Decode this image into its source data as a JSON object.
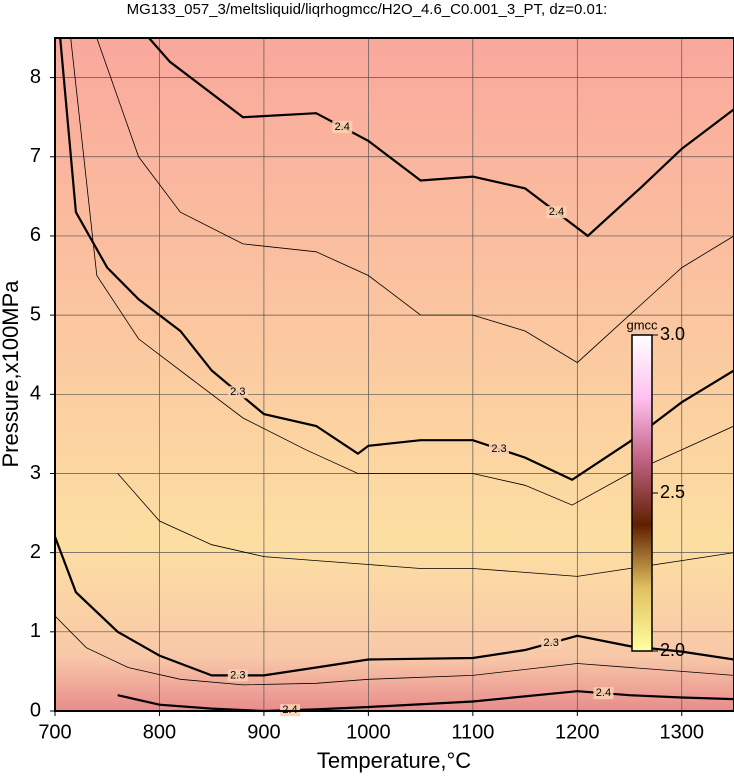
{
  "chart_data": {
    "type": "contour",
    "title": "MG133_057_3/meltsliquid/liqrhogmcc/H2O_4.6_C0.001_3_PT, dz=0.01:",
    "x_label": "Temperature,°C",
    "y_label": "Pressure,x100MPa",
    "xlim": [
      700,
      1350
    ],
    "ylim": [
      0,
      8.5
    ],
    "xticks": [
      700,
      800,
      900,
      1000,
      1100,
      1200,
      1300
    ],
    "yticks": [
      0,
      1,
      2,
      3,
      4,
      5,
      6,
      7,
      8
    ],
    "grid": true,
    "contours": [
      {
        "level": 2.4,
        "major": true,
        "x": [
          790,
          810,
          880,
          950,
          1000,
          1050,
          1100,
          1150,
          1210,
          1260,
          1300,
          1350
        ],
        "y": [
          8.5,
          8.2,
          7.5,
          7.55,
          7.2,
          6.7,
          6.75,
          6.6,
          6.0,
          6.6,
          7.1,
          7.6
        ]
      },
      {
        "level": 2.3,
        "major": true,
        "x": [
          705,
          720,
          750,
          780,
          820,
          850,
          900,
          950,
          990,
          1000,
          1050,
          1100,
          1150,
          1195,
          1250,
          1300,
          1350
        ],
        "y": [
          8.5,
          6.3,
          5.6,
          5.2,
          4.8,
          4.3,
          3.75,
          3.6,
          3.25,
          3.35,
          3.42,
          3.42,
          3.2,
          2.92,
          3.4,
          3.9,
          4.3
        ]
      },
      {
        "level": 2.3,
        "major": true,
        "x": [
          700,
          720,
          760,
          800,
          850,
          900,
          950,
          1000,
          1100,
          1150,
          1200,
          1250,
          1300,
          1350
        ],
        "y": [
          2.2,
          1.5,
          1.0,
          0.7,
          0.45,
          0.45,
          0.55,
          0.65,
          0.67,
          0.77,
          0.95,
          0.82,
          0.75,
          0.65
        ]
      },
      {
        "level": 2.4,
        "major": true,
        "x": [
          760,
          800,
          850,
          900,
          950,
          1000,
          1100,
          1200,
          1250,
          1300,
          1350
        ],
        "y": [
          0.2,
          0.08,
          0.03,
          0.0,
          0.02,
          0.05,
          0.12,
          0.25,
          0.2,
          0.17,
          0.15
        ]
      },
      {
        "level": 2.35,
        "major": false,
        "x": [
          740,
          780,
          820,
          880,
          950,
          1000,
          1050,
          1100,
          1150,
          1200,
          1250,
          1300,
          1350
        ],
        "y": [
          8.5,
          7.0,
          6.3,
          5.9,
          5.8,
          5.5,
          5.0,
          5.0,
          4.8,
          4.4,
          5.0,
          5.6,
          6.0
        ]
      },
      {
        "level": 2.28,
        "major": false,
        "x": [
          715,
          740,
          780,
          830,
          880,
          940,
          990,
          1050,
          1100,
          1150,
          1195,
          1250,
          1300,
          1350
        ],
        "y": [
          8.5,
          5.5,
          4.7,
          4.2,
          3.7,
          3.3,
          3.0,
          3.0,
          3.0,
          2.85,
          2.6,
          3.0,
          3.3,
          3.6
        ]
      },
      {
        "level": 2.25,
        "major": false,
        "x": [
          760,
          800,
          850,
          900,
          950,
          1000,
          1050,
          1100,
          1150,
          1200,
          1250,
          1300,
          1350
        ],
        "y": [
          3.0,
          2.4,
          2.1,
          1.95,
          1.9,
          1.85,
          1.8,
          1.8,
          1.75,
          1.7,
          1.8,
          1.9,
          2.0
        ]
      },
      {
        "level": 2.32,
        "major": false,
        "x": [
          700,
          730,
          770,
          820,
          880,
          950,
          1000,
          1100,
          1200,
          1300,
          1350
        ],
        "y": [
          1.2,
          0.8,
          0.55,
          0.4,
          0.33,
          0.35,
          0.4,
          0.45,
          0.6,
          0.5,
          0.45
        ]
      }
    ],
    "colorbar": {
      "label": "gmcc",
      "lim": [
        2.0,
        3.0
      ],
      "ticks": [
        {
          "value": 2.0,
          "label": "2.0"
        },
        2.5,
        {
          "value": 3.0,
          "label": "3.0"
        }
      ],
      "colors": [
        "#ffffa0",
        "#e0c060",
        "#602000",
        "#c06080",
        "#ffc0f0",
        "#ffffff"
      ]
    }
  }
}
